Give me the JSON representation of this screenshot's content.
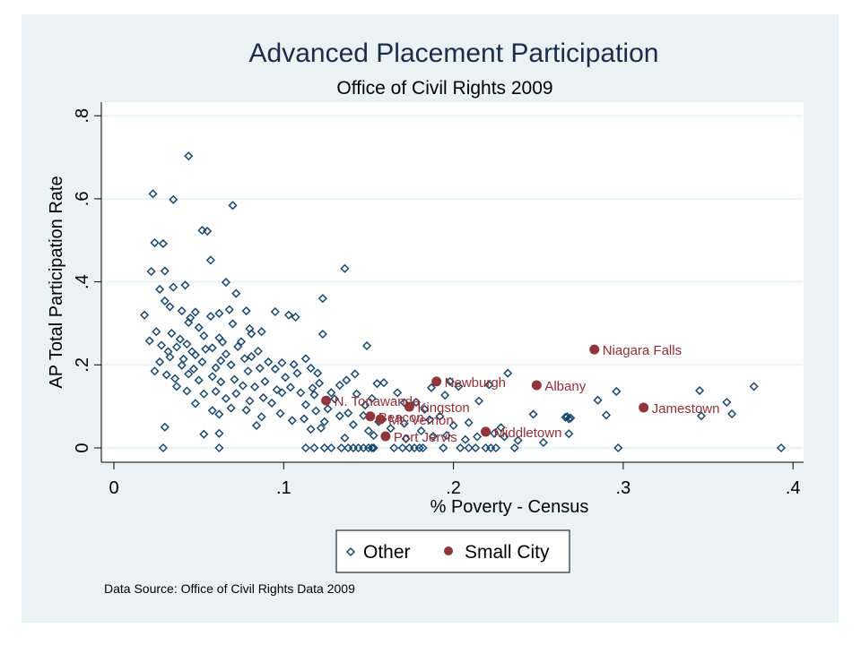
{
  "chart_data": {
    "type": "scatter",
    "title": "Advanced Placement Participation",
    "subtitle": "Office of Civil Rights 2009",
    "xlabel": "% Poverty - Census",
    "ylabel": "AP Total Participation Rate",
    "xlim": [
      0,
      0.41
    ],
    "ylim": [
      0,
      0.8
    ],
    "xticks": [
      0,
      0.1,
      0.2,
      0.3,
      0.4
    ],
    "xtick_labels": [
      "0",
      ".1",
      ".2",
      ".3",
      ".4"
    ],
    "yticks": [
      0,
      0.2,
      0.4,
      0.6,
      0.8
    ],
    "ytick_labels": [
      "0",
      ".2",
      ".4",
      ".6",
      ".8"
    ],
    "grid": true,
    "legend_position": "bottom",
    "note": "Data Source: Office of Civil Rights Data 2009",
    "colors": {
      "other": "#1a476f",
      "small_city": "#90353b",
      "background": "#eaf2f3",
      "plot_background": "#ffffff",
      "grid": "#eaf2f3"
    },
    "series": [
      {
        "name": "Other",
        "marker": "hollow-diamond",
        "points": [
          [
            0.044,
            0.703
          ],
          [
            0.023,
            0.612
          ],
          [
            0.035,
            0.598
          ],
          [
            0.07,
            0.584
          ],
          [
            0.052,
            0.524
          ],
          [
            0.055,
            0.522
          ],
          [
            0.024,
            0.494
          ],
          [
            0.029,
            0.492
          ],
          [
            0.057,
            0.452
          ],
          [
            0.022,
            0.425
          ],
          [
            0.03,
            0.426
          ],
          [
            0.136,
            0.432
          ],
          [
            0.027,
            0.382
          ],
          [
            0.035,
            0.387
          ],
          [
            0.042,
            0.392
          ],
          [
            0.066,
            0.399
          ],
          [
            0.123,
            0.36
          ],
          [
            0.072,
            0.372
          ],
          [
            0.018,
            0.32
          ],
          [
            0.03,
            0.354
          ],
          [
            0.033,
            0.34
          ],
          [
            0.04,
            0.33
          ],
          [
            0.045,
            0.313
          ],
          [
            0.048,
            0.327
          ],
          [
            0.057,
            0.317
          ],
          [
            0.062,
            0.324
          ],
          [
            0.068,
            0.333
          ],
          [
            0.078,
            0.33
          ],
          [
            0.095,
            0.328
          ],
          [
            0.103,
            0.32
          ],
          [
            0.107,
            0.315
          ],
          [
            0.07,
            0.299
          ],
          [
            0.08,
            0.287
          ],
          [
            0.044,
            0.302
          ],
          [
            0.05,
            0.29
          ],
          [
            0.025,
            0.28
          ],
          [
            0.034,
            0.276
          ],
          [
            0.039,
            0.262
          ],
          [
            0.053,
            0.27
          ],
          [
            0.062,
            0.265
          ],
          [
            0.064,
            0.255
          ],
          [
            0.075,
            0.256
          ],
          [
            0.081,
            0.275
          ],
          [
            0.087,
            0.28
          ],
          [
            0.123,
            0.274
          ],
          [
            0.021,
            0.258
          ],
          [
            0.028,
            0.247
          ],
          [
            0.032,
            0.232
          ],
          [
            0.037,
            0.243
          ],
          [
            0.043,
            0.25
          ],
          [
            0.046,
            0.232
          ],
          [
            0.048,
            0.224
          ],
          [
            0.054,
            0.238
          ],
          [
            0.058,
            0.241
          ],
          [
            0.066,
            0.226
          ],
          [
            0.073,
            0.244
          ],
          [
            0.081,
            0.22
          ],
          [
            0.085,
            0.233
          ],
          [
            0.091,
            0.207
          ],
          [
            0.099,
            0.205
          ],
          [
            0.106,
            0.201
          ],
          [
            0.113,
            0.215
          ],
          [
            0.149,
            0.246
          ],
          [
            0.027,
            0.207
          ],
          [
            0.033,
            0.219
          ],
          [
            0.04,
            0.199
          ],
          [
            0.041,
            0.214
          ],
          [
            0.047,
            0.19
          ],
          [
            0.052,
            0.207
          ],
          [
            0.06,
            0.193
          ],
          [
            0.063,
            0.21
          ],
          [
            0.069,
            0.2
          ],
          [
            0.077,
            0.215
          ],
          [
            0.079,
            0.185
          ],
          [
            0.086,
            0.192
          ],
          [
            0.095,
            0.19
          ],
          [
            0.101,
            0.17
          ],
          [
            0.108,
            0.18
          ],
          [
            0.116,
            0.192
          ],
          [
            0.12,
            0.18
          ],
          [
            0.024,
            0.185
          ],
          [
            0.031,
            0.176
          ],
          [
            0.036,
            0.167
          ],
          [
            0.044,
            0.178
          ],
          [
            0.05,
            0.163
          ],
          [
            0.058,
            0.172
          ],
          [
            0.063,
            0.159
          ],
          [
            0.071,
            0.165
          ],
          [
            0.076,
            0.15
          ],
          [
            0.083,
            0.147
          ],
          [
            0.089,
            0.16
          ],
          [
            0.096,
            0.14
          ],
          [
            0.104,
            0.146
          ],
          [
            0.11,
            0.133
          ],
          [
            0.117,
            0.144
          ],
          [
            0.121,
            0.156
          ],
          [
            0.128,
            0.133
          ],
          [
            0.133,
            0.151
          ],
          [
            0.137,
            0.163
          ],
          [
            0.142,
            0.178
          ],
          [
            0.155,
            0.155
          ],
          [
            0.159,
            0.157
          ],
          [
            0.037,
            0.148
          ],
          [
            0.043,
            0.137
          ],
          [
            0.053,
            0.13
          ],
          [
            0.06,
            0.136
          ],
          [
            0.066,
            0.119
          ],
          [
            0.072,
            0.131
          ],
          [
            0.08,
            0.113
          ],
          [
            0.088,
            0.121
          ],
          [
            0.093,
            0.108
          ],
          [
            0.099,
            0.133
          ],
          [
            0.113,
            0.104
          ],
          [
            0.118,
            0.128
          ],
          [
            0.126,
            0.094
          ],
          [
            0.13,
            0.118
          ],
          [
            0.138,
            0.084
          ],
          [
            0.143,
            0.13
          ],
          [
            0.148,
            0.103
          ],
          [
            0.152,
            0.119
          ],
          [
            0.167,
            0.133
          ],
          [
            0.171,
            0.109
          ],
          [
            0.178,
            0.11
          ],
          [
            0.183,
            0.093
          ],
          [
            0.187,
            0.145
          ],
          [
            0.195,
            0.127
          ],
          [
            0.198,
            0.16
          ],
          [
            0.203,
            0.148
          ],
          [
            0.215,
            0.113
          ],
          [
            0.221,
            0.152
          ],
          [
            0.232,
            0.18
          ],
          [
            0.048,
            0.107
          ],
          [
            0.058,
            0.09
          ],
          [
            0.062,
            0.081
          ],
          [
            0.069,
            0.096
          ],
          [
            0.078,
            0.091
          ],
          [
            0.087,
            0.075
          ],
          [
            0.098,
            0.083
          ],
          [
            0.105,
            0.066
          ],
          [
            0.112,
            0.07
          ],
          [
            0.119,
            0.089
          ],
          [
            0.124,
            0.063
          ],
          [
            0.133,
            0.077
          ],
          [
            0.141,
            0.056
          ],
          [
            0.147,
            0.078
          ],
          [
            0.15,
            0.041
          ],
          [
            0.156,
            0.063
          ],
          [
            0.163,
            0.047
          ],
          [
            0.171,
            0.059
          ],
          [
            0.181,
            0.041
          ],
          [
            0.186,
            0.068
          ],
          [
            0.192,
            0.076
          ],
          [
            0.2,
            0.054
          ],
          [
            0.209,
            0.061
          ],
          [
            0.214,
            0.027
          ],
          [
            0.228,
            0.049
          ],
          [
            0.247,
            0.081
          ],
          [
            0.053,
            0.033
          ],
          [
            0.03,
            0.05
          ],
          [
            0.062,
            0.035
          ],
          [
            0.084,
            0.054
          ],
          [
            0.116,
            0.045
          ],
          [
            0.122,
            0.048
          ],
          [
            0.136,
            0.024
          ],
          [
            0.153,
            0.03
          ],
          [
            0.172,
            0.022
          ],
          [
            0.188,
            0.028
          ],
          [
            0.196,
            0.03
          ],
          [
            0.207,
            0.02
          ],
          [
            0.224,
            0.035
          ],
          [
            0.23,
            0.027
          ],
          [
            0.238,
            0.018
          ],
          [
            0.253,
            0.013
          ],
          [
            0.029,
            0.0
          ],
          [
            0.062,
            0.0
          ],
          [
            0.113,
            0.0
          ],
          [
            0.118,
            0.0
          ],
          [
            0.124,
            0.0
          ],
          [
            0.128,
            0.0
          ],
          [
            0.134,
            0.0
          ],
          [
            0.138,
            0.0
          ],
          [
            0.141,
            0.0
          ],
          [
            0.144,
            0.0
          ],
          [
            0.147,
            0.0
          ],
          [
            0.15,
            0.0
          ],
          [
            0.152,
            0.0
          ],
          [
            0.153,
            0.0
          ],
          [
            0.165,
            0.0
          ],
          [
            0.17,
            0.0
          ],
          [
            0.174,
            0.0
          ],
          [
            0.177,
            0.0
          ],
          [
            0.18,
            0.0
          ],
          [
            0.182,
            0.0
          ],
          [
            0.194,
            0.0
          ],
          [
            0.204,
            0.0
          ],
          [
            0.209,
            0.0
          ],
          [
            0.213,
            0.0
          ],
          [
            0.219,
            0.0
          ],
          [
            0.222,
            0.0
          ],
          [
            0.225,
            0.0
          ],
          [
            0.236,
            0.0
          ],
          [
            0.297,
            0.0
          ],
          [
            0.393,
            0.0
          ],
          [
            0.266,
            0.074
          ],
          [
            0.269,
            0.072
          ],
          [
            0.268,
            0.034
          ],
          [
            0.29,
            0.079
          ],
          [
            0.285,
            0.115
          ],
          [
            0.296,
            0.136
          ],
          [
            0.345,
            0.138
          ],
          [
            0.346,
            0.077
          ],
          [
            0.361,
            0.11
          ],
          [
            0.364,
            0.082
          ],
          [
            0.377,
            0.148
          ],
          [
            0.267,
            0.075
          ],
          [
            0.268,
            0.07
          ]
        ]
      },
      {
        "name": "Small City",
        "marker": "filled-circle",
        "points": [
          {
            "label": "Niagara Falls",
            "x": 0.283,
            "y": 0.237
          },
          {
            "label": "Newburgh",
            "x": 0.19,
            "y": 0.16
          },
          {
            "label": "Albany",
            "x": 0.249,
            "y": 0.151
          },
          {
            "label": "Jamestown",
            "x": 0.312,
            "y": 0.097
          },
          {
            "label": "N. Tonawanda",
            "x": 0.125,
            "y": 0.114
          },
          {
            "label": "Kingston",
            "x": 0.174,
            "y": 0.099
          },
          {
            "label": "Beacon",
            "x": 0.151,
            "y": 0.076
          },
          {
            "label": "Mt. Vernon",
            "x": 0.157,
            "y": 0.069
          },
          {
            "label": "Port Jervis",
            "x": 0.16,
            "y": 0.028
          },
          {
            "label": "Middletown",
            "x": 0.219,
            "y": 0.039
          }
        ]
      }
    ],
    "legend": [
      {
        "label": "Other",
        "marker": "hollow-diamond"
      },
      {
        "label": "Small City",
        "marker": "filled-circle"
      }
    ]
  }
}
